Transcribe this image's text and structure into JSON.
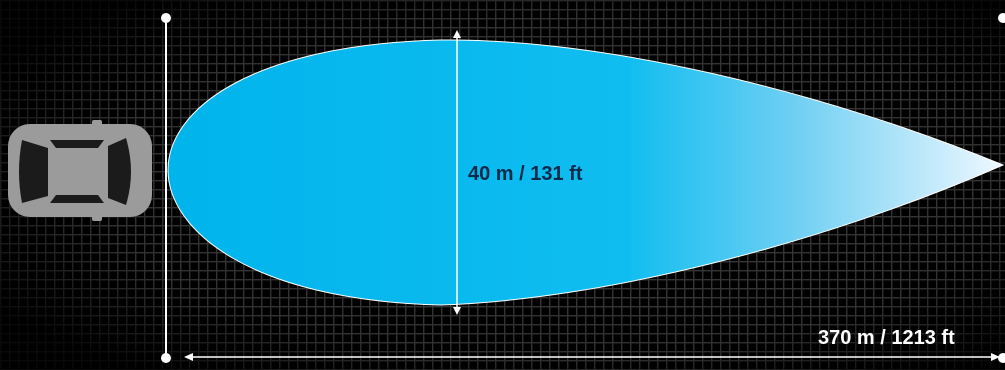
{
  "diagram": {
    "width_label": "40 m / 131 ft",
    "distance_label": "370 m / 1213 ft",
    "colors": {
      "background": "#000000",
      "grid": "#2a2a2a",
      "beam_near": "#00b4ec",
      "beam_far": "#e6f6ff",
      "car_body": "#9a9a9a",
      "car_detail": "#1a1a1a",
      "guide_line": "#ffffff",
      "label_dark": "#0a2a4a",
      "label_light": "#ffffff"
    },
    "icons": {
      "vehicle": "car-top-view-icon"
    }
  }
}
